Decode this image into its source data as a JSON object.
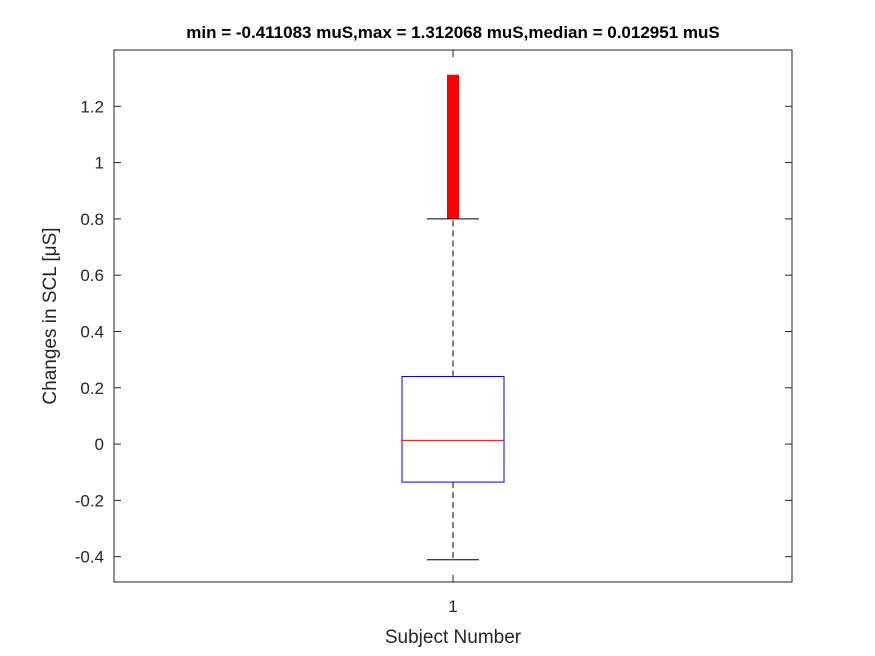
{
  "chart_data": {
    "type": "box",
    "title": "min = -0.411083 muS,max = 1.312068 muS,median = 0.012951 muS",
    "xlabel": "Subject Number",
    "ylabel": "Changes in SCL [μS]",
    "categories": [
      "1"
    ],
    "ylim": [
      -0.49,
      1.4
    ],
    "yticks": [
      -0.4,
      -0.2,
      0,
      0.2,
      0.4,
      0.6,
      0.8,
      1,
      1.2
    ],
    "ytick_labels": [
      "-0.4",
      "-0.2",
      "0",
      "0.2",
      "0.4",
      "0.6",
      "0.8",
      "1",
      "1.2"
    ],
    "grid": false,
    "boxes": [
      {
        "category": "1",
        "whisker_low": -0.411083,
        "q1": -0.135,
        "median": 0.012951,
        "q3": 0.24,
        "whisker_high": 0.8,
        "outlier_min": 0.8,
        "outlier_max": 1.312068
      }
    ],
    "colors": {
      "box": "#0000ff",
      "median": "#ff0000",
      "whisker": "#000000",
      "outliers": "#ff0000",
      "axes": "#262626"
    }
  }
}
